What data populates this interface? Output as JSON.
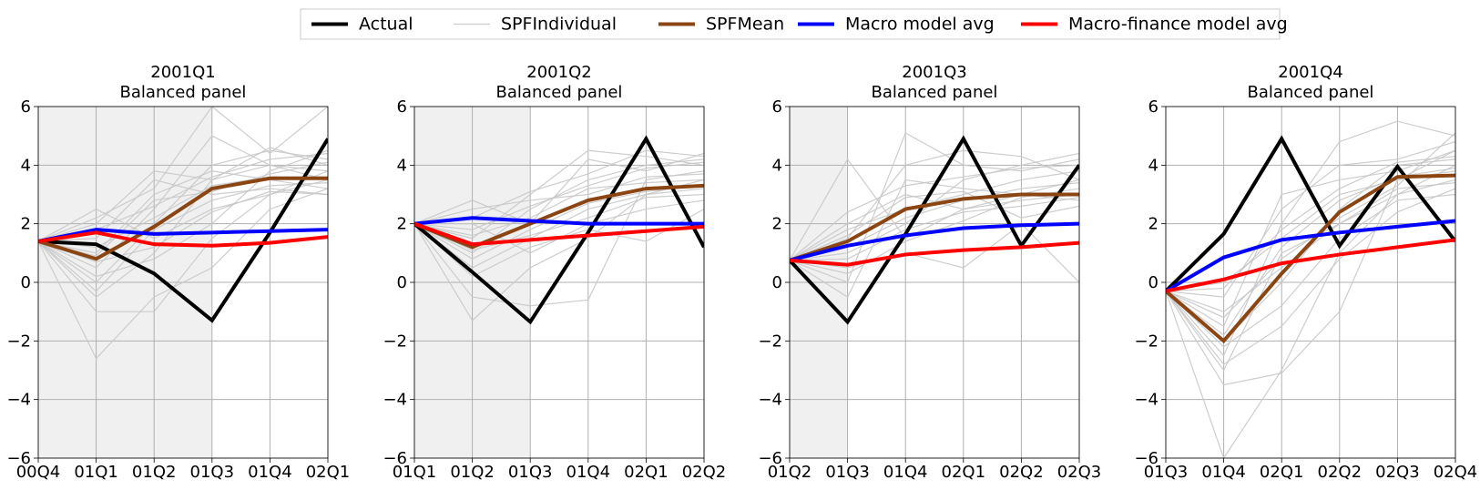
{
  "legend": {
    "items": [
      {
        "label": "Actual",
        "color": "#000000",
        "width": 4
      },
      {
        "label": "SPFIndividual",
        "color": "#cccccc",
        "width": 1.2
      },
      {
        "label": "SPFMean",
        "color": "#8b4513",
        "width": 4
      },
      {
        "label": "Macro model avg",
        "color": "#0000ff",
        "width": 4
      },
      {
        "label": "Macro-finance model avg",
        "color": "#ff0000",
        "width": 4
      }
    ]
  },
  "chart_data": [
    {
      "type": "line",
      "title": "2001Q1",
      "subtitle": "Balanced panel",
      "categories": [
        "00Q4",
        "01Q1",
        "01Q2",
        "01Q3",
        "01Q4",
        "02Q1"
      ],
      "ylim": [
        -6,
        6
      ],
      "yticks": [
        -6,
        -4,
        -2,
        0,
        2,
        4,
        6
      ],
      "grid": true,
      "shaded_until_index": 3,
      "series": [
        {
          "name": "Actual",
          "values": [
            1.4,
            1.3,
            0.3,
            -1.3,
            1.7,
            4.9
          ]
        },
        {
          "name": "SPFMean",
          "values": [
            1.4,
            0.8,
            1.9,
            3.2,
            3.55,
            3.55
          ]
        },
        {
          "name": "Macro model avg",
          "values": [
            1.4,
            1.8,
            1.65,
            1.7,
            1.75,
            1.8
          ]
        },
        {
          "name": "Macro-finance model avg",
          "values": [
            1.4,
            1.7,
            1.3,
            1.25,
            1.35,
            1.55
          ]
        }
      ],
      "individual_series": [
        [
          1.4,
          -2.6,
          -0.5,
          0.5,
          2.5,
          3.2
        ],
        [
          1.4,
          -1.0,
          -1.0,
          1.5,
          3.0,
          3.5
        ],
        [
          1.4,
          -0.5,
          1.0,
          3.5,
          4.0,
          3.8
        ],
        [
          1.4,
          0.0,
          2.0,
          4.0,
          4.5,
          4.2
        ],
        [
          1.4,
          0.5,
          2.5,
          5.0,
          4.0,
          3.5
        ],
        [
          1.4,
          1.0,
          3.0,
          3.8,
          3.5,
          3.2
        ],
        [
          1.4,
          1.5,
          3.5,
          3.0,
          3.2,
          3.0
        ],
        [
          1.4,
          2.0,
          3.8,
          3.5,
          4.6,
          4.0
        ],
        [
          1.4,
          2.5,
          1.5,
          2.5,
          3.0,
          3.8
        ],
        [
          1.4,
          0.2,
          0.8,
          2.0,
          3.8,
          4.5
        ],
        [
          1.4,
          1.2,
          2.2,
          3.3,
          3.6,
          3.6
        ],
        [
          1.4,
          -0.3,
          1.8,
          2.8,
          3.3,
          3.4
        ],
        [
          1.4,
          1.8,
          2.6,
          3.6,
          4.2,
          4.4
        ],
        [
          1.4,
          0.7,
          1.2,
          2.4,
          3.1,
          3.0
        ],
        [
          1.4,
          2.2,
          3.2,
          6.0,
          4.4,
          6.0
        ],
        [
          1.4,
          0.9,
          2.8,
          3.1,
          3.7,
          4.1
        ]
      ]
    },
    {
      "type": "line",
      "title": "2001Q2",
      "subtitle": "Balanced panel",
      "categories": [
        "01Q1",
        "01Q2",
        "01Q3",
        "01Q4",
        "02Q1",
        "02Q2"
      ],
      "ylim": [
        -6,
        6
      ],
      "yticks": [
        -6,
        -4,
        -2,
        0,
        2,
        4,
        6
      ],
      "grid": true,
      "shaded_until_index": 2,
      "series": [
        {
          "name": "Actual",
          "values": [
            2.0,
            0.35,
            -1.35,
            1.7,
            4.9,
            1.2
          ]
        },
        {
          "name": "SPFMean",
          "values": [
            2.0,
            1.2,
            2.0,
            2.8,
            3.2,
            3.3
          ]
        },
        {
          "name": "Macro model avg",
          "values": [
            2.0,
            2.2,
            2.1,
            2.0,
            2.0,
            2.0
          ]
        },
        {
          "name": "Macro-finance model avg",
          "values": [
            2.0,
            1.3,
            1.45,
            1.6,
            1.75,
            1.9
          ]
        }
      ],
      "individual_series": [
        [
          2.0,
          -1.3,
          0.5,
          1.5,
          3.0,
          3.5
        ],
        [
          2.0,
          -0.5,
          -0.8,
          -0.6,
          3.5,
          3.8
        ],
        [
          2.0,
          0.5,
          1.5,
          2.5,
          3.0,
          3.2
        ],
        [
          2.0,
          1.0,
          2.5,
          3.5,
          4.0,
          4.2
        ],
        [
          2.0,
          1.5,
          3.0,
          4.5,
          4.3,
          4.0
        ],
        [
          2.0,
          2.0,
          1.0,
          2.0,
          2.5,
          2.8
        ],
        [
          2.0,
          2.5,
          2.8,
          3.0,
          3.6,
          3.7
        ],
        [
          2.0,
          2.8,
          2.0,
          4.2,
          3.8,
          4.4
        ],
        [
          2.0,
          0.8,
          1.8,
          2.7,
          3.1,
          3.3
        ],
        [
          2.0,
          1.6,
          2.2,
          3.2,
          3.4,
          3.5
        ],
        [
          2.0,
          0.2,
          1.2,
          1.8,
          1.4,
          2.5
        ],
        [
          2.0,
          1.8,
          2.6,
          3.3,
          3.9,
          4.1
        ],
        [
          2.0,
          1.1,
          1.6,
          2.2,
          2.9,
          3.0
        ],
        [
          2.0,
          2.2,
          3.1,
          3.7,
          4.5,
          4.3
        ]
      ]
    },
    {
      "type": "line",
      "title": "2001Q3",
      "subtitle": "Balanced panel",
      "categories": [
        "01Q2",
        "01Q3",
        "01Q4",
        "02Q1",
        "02Q2",
        "02Q3"
      ],
      "ylim": [
        -6,
        6
      ],
      "yticks": [
        -6,
        -4,
        -2,
        0,
        2,
        4,
        6
      ],
      "grid": true,
      "shaded_until_index": 1,
      "series": [
        {
          "name": "Actual",
          "values": [
            0.75,
            -1.35,
            1.65,
            4.9,
            1.25,
            4.0
          ]
        },
        {
          "name": "SPFMean",
          "values": [
            0.75,
            1.4,
            2.5,
            2.85,
            3.0,
            3.0
          ]
        },
        {
          "name": "Macro model avg",
          "values": [
            0.75,
            1.25,
            1.6,
            1.85,
            1.95,
            2.0
          ]
        },
        {
          "name": "Macro-finance model avg",
          "values": [
            0.75,
            0.6,
            0.95,
            1.1,
            1.2,
            1.35
          ]
        }
      ],
      "individual_series": [
        [
          0.75,
          4.2,
          1.5,
          2.5,
          3.0,
          3.5
        ],
        [
          0.75,
          0.0,
          5.1,
          4.0,
          3.8,
          4.2
        ],
        [
          0.75,
          -0.5,
          3.5,
          3.2,
          3.0,
          2.8
        ],
        [
          0.75,
          0.5,
          1.0,
          0.5,
          2.0,
          0.0
        ],
        [
          0.75,
          1.0,
          2.0,
          3.5,
          4.0,
          4.4
        ],
        [
          0.75,
          1.5,
          4.0,
          4.5,
          4.3,
          3.5
        ],
        [
          0.75,
          2.0,
          3.0,
          2.5,
          2.8,
          3.0
        ],
        [
          0.75,
          1.8,
          2.5,
          3.0,
          3.5,
          3.8
        ],
        [
          0.75,
          1.2,
          2.2,
          2.8,
          3.2,
          3.4
        ],
        [
          0.75,
          0.8,
          1.8,
          2.4,
          2.6,
          2.9
        ],
        [
          0.75,
          2.4,
          3.3,
          3.6,
          3.9,
          4.0
        ],
        [
          0.75,
          1.6,
          2.9,
          3.1,
          2.2,
          2.6
        ],
        [
          0.75,
          0.3,
          1.4,
          2.1,
          2.9,
          3.2
        ]
      ]
    },
    {
      "type": "line",
      "title": "2001Q4",
      "subtitle": "Balanced panel",
      "categories": [
        "01Q3",
        "01Q4",
        "02Q1",
        "02Q2",
        "02Q3",
        "02Q4"
      ],
      "ylim": [
        -6,
        6
      ],
      "yticks": [
        -6,
        -4,
        -2,
        0,
        2,
        4,
        6
      ],
      "grid": true,
      "shaded_until_index": 0,
      "series": [
        {
          "name": "Actual",
          "values": [
            -0.3,
            1.65,
            4.9,
            1.25,
            3.95,
            1.4
          ]
        },
        {
          "name": "SPFMean",
          "values": [
            -0.3,
            -2.0,
            0.3,
            2.4,
            3.6,
            3.65
          ]
        },
        {
          "name": "Macro model avg",
          "values": [
            -0.3,
            0.85,
            1.45,
            1.7,
            1.9,
            2.1
          ]
        },
        {
          "name": "Macro-finance model avg",
          "values": [
            -0.3,
            0.1,
            0.65,
            0.95,
            1.2,
            1.45
          ]
        }
      ],
      "individual_series": [
        [
          -0.3,
          -6.0,
          -3.0,
          1.0,
          3.0,
          4.0
        ],
        [
          -0.3,
          -3.5,
          -3.1,
          -1.0,
          3.5,
          4.5
        ],
        [
          -0.3,
          -3.0,
          1.0,
          2.0,
          3.0,
          3.5
        ],
        [
          -0.3,
          -2.5,
          2.0,
          4.8,
          5.5,
          5.0
        ],
        [
          -0.3,
          -2.0,
          0.0,
          2.5,
          4.0,
          4.2
        ],
        [
          -0.3,
          -1.5,
          3.0,
          3.5,
          3.8,
          4.5
        ],
        [
          -0.3,
          -1.0,
          0.5,
          2.0,
          3.2,
          3.4
        ],
        [
          -0.3,
          -0.5,
          2.5,
          4.0,
          4.2,
          4.8
        ],
        [
          -0.3,
          0.0,
          1.5,
          3.0,
          3.5,
          3.8
        ],
        [
          -0.3,
          -2.2,
          -0.8,
          1.5,
          2.8,
          3.0
        ],
        [
          -0.3,
          -1.8,
          1.2,
          2.8,
          3.6,
          3.9
        ],
        [
          -0.3,
          -2.8,
          -1.5,
          0.8,
          2.4,
          3.2
        ],
        [
          -0.3,
          -0.2,
          1.8,
          3.2,
          4.1,
          4.3
        ],
        [
          -0.3,
          -1.2,
          0.8,
          2.2,
          3.3,
          5.1
        ]
      ]
    }
  ]
}
